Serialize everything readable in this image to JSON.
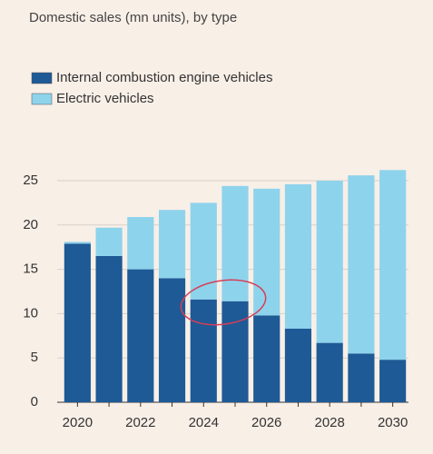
{
  "chart_data": {
    "type": "stacked-bar",
    "title": "Domestic sales (mn units), by type",
    "categories": [
      "2020",
      null,
      "2022",
      null,
      "2024",
      null,
      "2026",
      null,
      "2028",
      null,
      "2030"
    ],
    "series": [
      {
        "name": "Internal combustion engine vehicles",
        "color": "#1e5a96",
        "values": [
          17.9,
          16.5,
          15.0,
          14.0,
          11.6,
          11.4,
          9.8,
          8.3,
          6.7,
          5.5,
          4.8
        ]
      },
      {
        "name": "Electric vehicles",
        "color": "#8ed3ec",
        "values": [
          0.2,
          3.2,
          5.9,
          7.7,
          10.9,
          13.0,
          14.3,
          16.3,
          18.3,
          20.1,
          21.4
        ]
      }
    ],
    "ylim": [
      0,
      27
    ],
    "yticks": [
      0,
      5,
      10,
      15,
      20,
      25
    ],
    "grid": true
  }
}
